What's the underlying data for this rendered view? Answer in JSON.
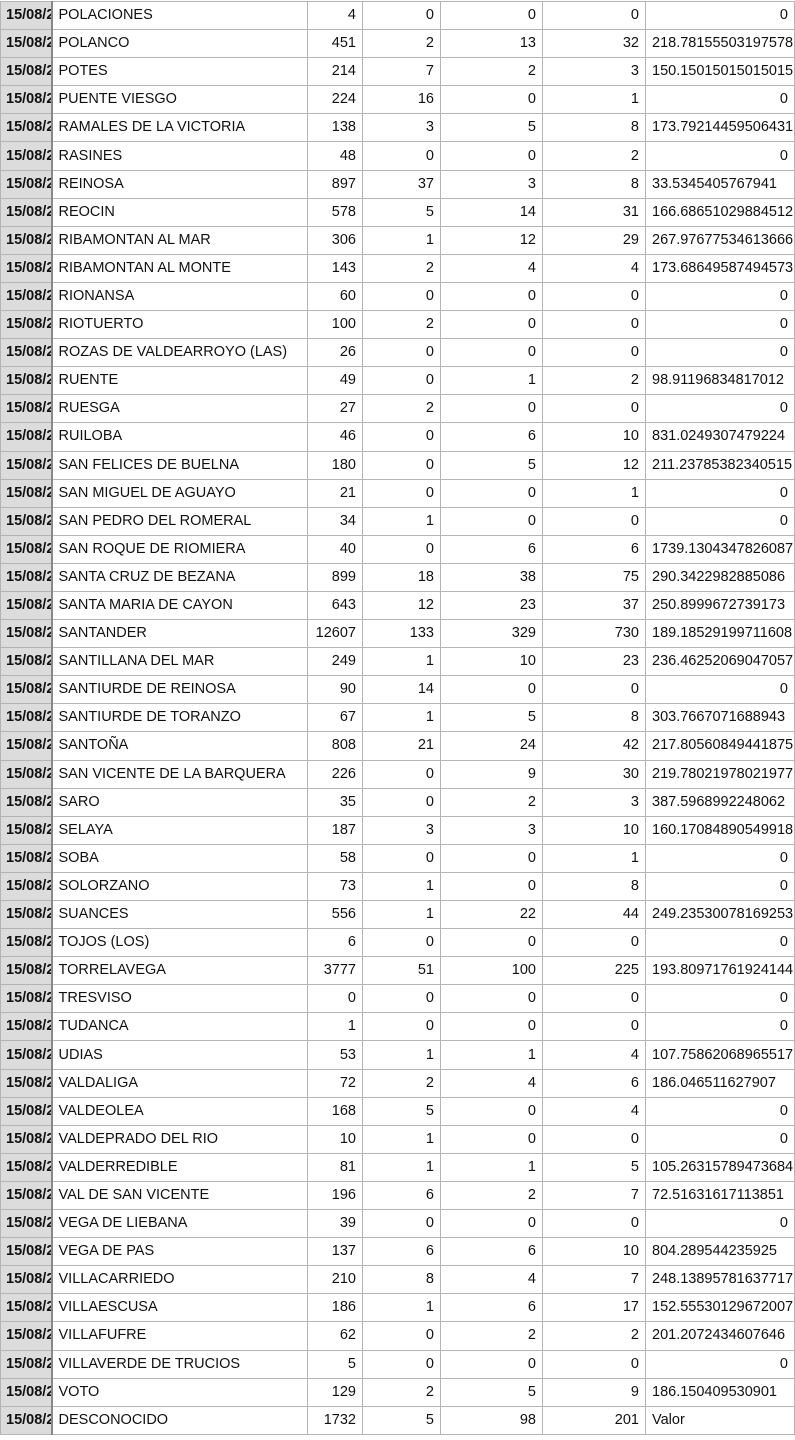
{
  "rows": [
    [
      "15/08/2",
      "POLACIONES",
      "4",
      "0",
      "0",
      "0",
      "0"
    ],
    [
      "15/08/2",
      "POLANCO",
      "451",
      "2",
      "13",
      "32",
      "218.78155503197578"
    ],
    [
      "15/08/2",
      "POTES",
      "214",
      "7",
      "2",
      "3",
      "150.15015015015015"
    ],
    [
      "15/08/2",
      "PUENTE VIESGO",
      "224",
      "16",
      "0",
      "1",
      "0"
    ],
    [
      "15/08/2",
      "RAMALES DE LA VICTORIA",
      "138",
      "3",
      "5",
      "8",
      "173.79214459506431"
    ],
    [
      "15/08/2",
      "RASINES",
      "48",
      "0",
      "0",
      "2",
      "0"
    ],
    [
      "15/08/2",
      "REINOSA",
      "897",
      "37",
      "3",
      "8",
      "33.5345405767941"
    ],
    [
      "15/08/2",
      "REOCIN",
      "578",
      "5",
      "14",
      "31",
      "166.68651029884512"
    ],
    [
      "15/08/2",
      "RIBAMONTAN AL MAR",
      "306",
      "1",
      "12",
      "29",
      "267.97677534613666"
    ],
    [
      "15/08/2",
      "RIBAMONTAN AL MONTE",
      "143",
      "2",
      "4",
      "4",
      "173.68649587494573"
    ],
    [
      "15/08/2",
      "RIONANSA",
      "60",
      "0",
      "0",
      "0",
      "0"
    ],
    [
      "15/08/2",
      "RIOTUERTO",
      "100",
      "2",
      "0",
      "0",
      "0"
    ],
    [
      "15/08/2",
      "ROZAS DE VALDEARROYO (LAS)",
      "26",
      "0",
      "0",
      "0",
      "0"
    ],
    [
      "15/08/2",
      "RUENTE",
      "49",
      "0",
      "1",
      "2",
      "98.91196834817012"
    ],
    [
      "15/08/2",
      "RUESGA",
      "27",
      "2",
      "0",
      "0",
      "0"
    ],
    [
      "15/08/2",
      "RUILOBA",
      "46",
      "0",
      "6",
      "10",
      "831.0249307479224"
    ],
    [
      "15/08/2",
      "SAN FELICES DE BUELNA",
      "180",
      "0",
      "5",
      "12",
      "211.23785382340515"
    ],
    [
      "15/08/2",
      "SAN MIGUEL DE AGUAYO",
      "21",
      "0",
      "0",
      "1",
      "0"
    ],
    [
      "15/08/2",
      "SAN PEDRO DEL ROMERAL",
      "34",
      "1",
      "0",
      "0",
      "0"
    ],
    [
      "15/08/2",
      "SAN ROQUE DE RIOMIERA",
      "40",
      "0",
      "6",
      "6",
      "1739.1304347826087"
    ],
    [
      "15/08/2",
      "SANTA CRUZ DE BEZANA",
      "899",
      "18",
      "38",
      "75",
      "290.3422982885086"
    ],
    [
      "15/08/2",
      "SANTA MARIA DE CAYON",
      "643",
      "12",
      "23",
      "37",
      "250.8999672739173"
    ],
    [
      "15/08/2",
      "SANTANDER",
      "12607",
      "133",
      "329",
      "730",
      "189.18529199711608"
    ],
    [
      "15/08/2",
      "SANTILLANA DEL MAR",
      "249",
      "1",
      "10",
      "23",
      "236.46252069047057"
    ],
    [
      "15/08/2",
      "SANTIURDE DE REINOSA",
      "90",
      "14",
      "0",
      "0",
      "0"
    ],
    [
      "15/08/2",
      "SANTIURDE DE TORANZO",
      "67",
      "1",
      "5",
      "8",
      "303.7667071688943"
    ],
    [
      "15/08/2",
      "SANTOÑA",
      "808",
      "21",
      "24",
      "42",
      "217.80560849441875"
    ],
    [
      "15/08/2",
      "SAN VICENTE DE LA BARQUERA",
      "226",
      "0",
      "9",
      "30",
      "219.78021978021977"
    ],
    [
      "15/08/2",
      "SARO",
      "35",
      "0",
      "2",
      "3",
      "387.5968992248062"
    ],
    [
      "15/08/2",
      "SELAYA",
      "187",
      "3",
      "3",
      "10",
      "160.17084890549918"
    ],
    [
      "15/08/2",
      "SOBA",
      "58",
      "0",
      "0",
      "1",
      "0"
    ],
    [
      "15/08/2",
      "SOLORZANO",
      "73",
      "1",
      "0",
      "8",
      "0"
    ],
    [
      "15/08/2",
      "SUANCES",
      "556",
      "1",
      "22",
      "44",
      "249.23530078169253"
    ],
    [
      "15/08/2",
      "TOJOS (LOS)",
      "6",
      "0",
      "0",
      "0",
      "0"
    ],
    [
      "15/08/2",
      "TORRELAVEGA",
      "3777",
      "51",
      "100",
      "225",
      "193.80971761924144"
    ],
    [
      "15/08/2",
      "TRESVISO",
      "0",
      "0",
      "0",
      "0",
      "0"
    ],
    [
      "15/08/2",
      "TUDANCA",
      "1",
      "0",
      "0",
      "0",
      "0"
    ],
    [
      "15/08/2",
      "UDIAS",
      "53",
      "1",
      "1",
      "4",
      "107.75862068965517"
    ],
    [
      "15/08/2",
      "VALDALIGA",
      "72",
      "2",
      "4",
      "6",
      "186.046511627907"
    ],
    [
      "15/08/2",
      "VALDEOLEA",
      "168",
      "5",
      "0",
      "4",
      "0"
    ],
    [
      "15/08/2",
      "VALDEPRADO DEL RIO",
      "10",
      "1",
      "0",
      "0",
      "0"
    ],
    [
      "15/08/2",
      "VALDERREDIBLE",
      "81",
      "1",
      "1",
      "5",
      "105.26315789473684"
    ],
    [
      "15/08/2",
      "VAL DE SAN VICENTE",
      "196",
      "6",
      "2",
      "7",
      "72.51631617113851"
    ],
    [
      "15/08/2",
      "VEGA DE LIEBANA",
      "39",
      "0",
      "0",
      "0",
      "0"
    ],
    [
      "15/08/2",
      "VEGA DE PAS",
      "137",
      "6",
      "6",
      "10",
      "804.289544235925"
    ],
    [
      "15/08/2",
      "VILLACARRIEDO",
      "210",
      "8",
      "4",
      "7",
      "248.13895781637717"
    ],
    [
      "15/08/2",
      "VILLAESCUSA",
      "186",
      "1",
      "6",
      "17",
      "152.55530129672007"
    ],
    [
      "15/08/2",
      "VILLAFUFRE",
      "62",
      "0",
      "2",
      "2",
      "201.2072434607646"
    ],
    [
      "15/08/2",
      "VILLAVERDE DE TRUCIOS",
      "5",
      "0",
      "0",
      "0",
      "0"
    ],
    [
      "15/08/2",
      "VOTO",
      "129",
      "2",
      "5",
      "9",
      "186.150409530901"
    ],
    [
      "15/08/2",
      "DESCONOCIDO",
      "1732",
      "5",
      "98",
      "201",
      "Valor"
    ]
  ]
}
